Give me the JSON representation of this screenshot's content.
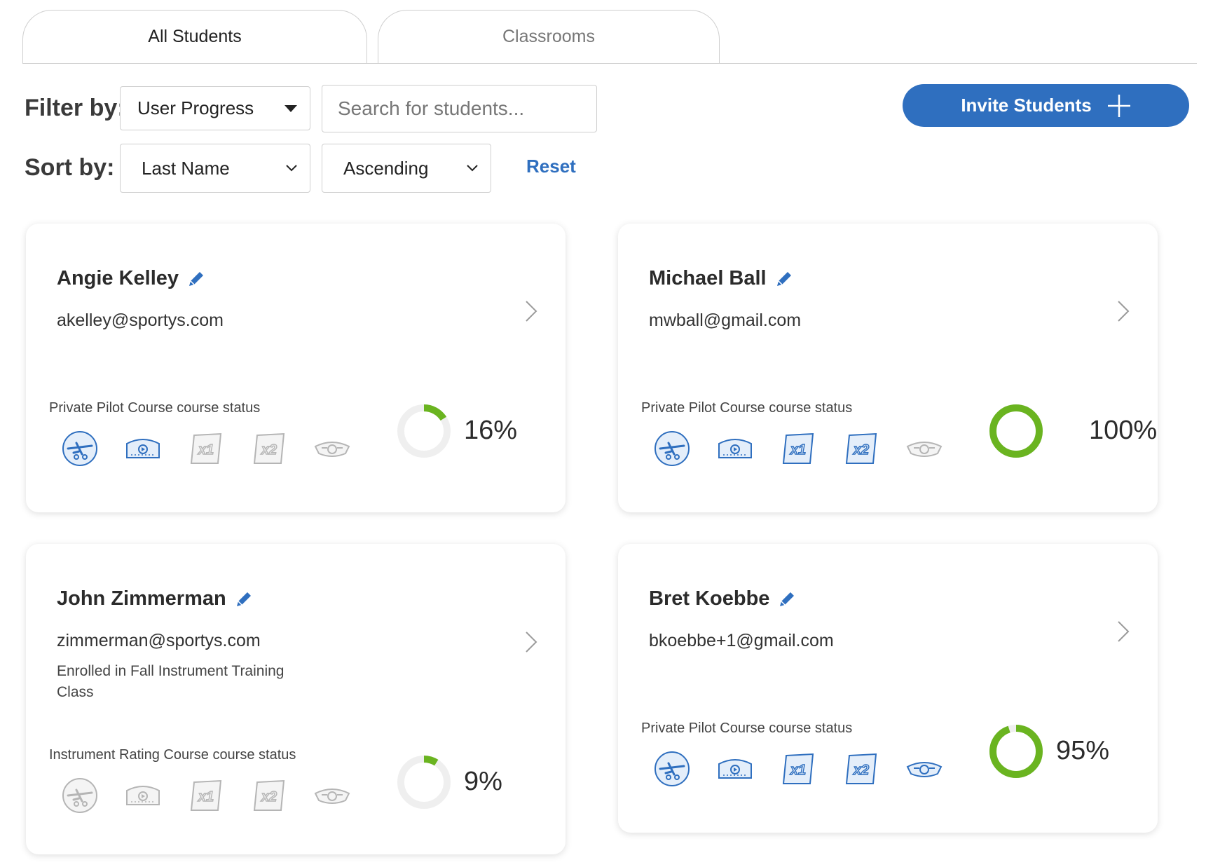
{
  "tabs": [
    {
      "label": "All Students",
      "active": true
    },
    {
      "label": "Classrooms",
      "active": false
    }
  ],
  "filter": {
    "label": "Filter by:",
    "selected": "User Progress",
    "search_placeholder": "Search for students..."
  },
  "sort": {
    "label": "Sort by:",
    "field": "Last Name",
    "order": "Ascending",
    "reset_label": "Reset"
  },
  "invite_button": {
    "label": "Invite Students",
    "icon": "plus-icon"
  },
  "colors": {
    "accent": "#2f6fbf",
    "progress": "#6ab420",
    "track": "#efefef",
    "badge_done": "#2f6fbf",
    "badge_todo": "#b5b5b5"
  },
  "students": [
    {
      "name": "Angie Kelley",
      "email": "akelley@sportys.com",
      "enrolled": "",
      "course_status": "Private Pilot Course course status",
      "progress": 16,
      "progress_text": "16%",
      "badges": [
        {
          "name": "airplane-badge-icon",
          "done": true
        },
        {
          "name": "video-badge-icon",
          "done": true
        },
        {
          "name": "x1-badge-icon",
          "done": false
        },
        {
          "name": "x2-badge-icon",
          "done": false
        },
        {
          "name": "wings-badge-icon",
          "done": false
        }
      ]
    },
    {
      "name": "Michael Ball",
      "email": "mwball@gmail.com",
      "enrolled": "",
      "course_status": "Private Pilot Course course status",
      "progress": 100,
      "progress_text": "100%",
      "badges": [
        {
          "name": "airplane-badge-icon",
          "done": true
        },
        {
          "name": "video-badge-icon",
          "done": true
        },
        {
          "name": "x1-badge-icon",
          "done": true
        },
        {
          "name": "x2-badge-icon",
          "done": true
        },
        {
          "name": "wings-badge-icon",
          "done": false
        }
      ]
    },
    {
      "name": "John Zimmerman",
      "email": "zimmerman@sportys.com",
      "enrolled": "Enrolled in Fall Instrument Training Class",
      "course_status": "Instrument Rating Course course status",
      "progress": 9,
      "progress_text": "9%",
      "badges": [
        {
          "name": "airplane-badge-icon",
          "done": false
        },
        {
          "name": "video-badge-icon",
          "done": false
        },
        {
          "name": "x1-badge-icon",
          "done": false
        },
        {
          "name": "x2-badge-icon",
          "done": false
        },
        {
          "name": "wings-badge-icon",
          "done": false
        }
      ]
    },
    {
      "name": "Bret Koebbe",
      "email": "bkoebbe+1@gmail.com",
      "enrolled": "",
      "course_status": "Private Pilot Course course status",
      "progress": 95,
      "progress_text": "95%",
      "badges": [
        {
          "name": "airplane-badge-icon",
          "done": true
        },
        {
          "name": "video-badge-icon",
          "done": true
        },
        {
          "name": "x1-badge-icon",
          "done": true
        },
        {
          "name": "x2-badge-icon",
          "done": true
        },
        {
          "name": "wings-badge-icon",
          "done": true
        }
      ]
    }
  ]
}
